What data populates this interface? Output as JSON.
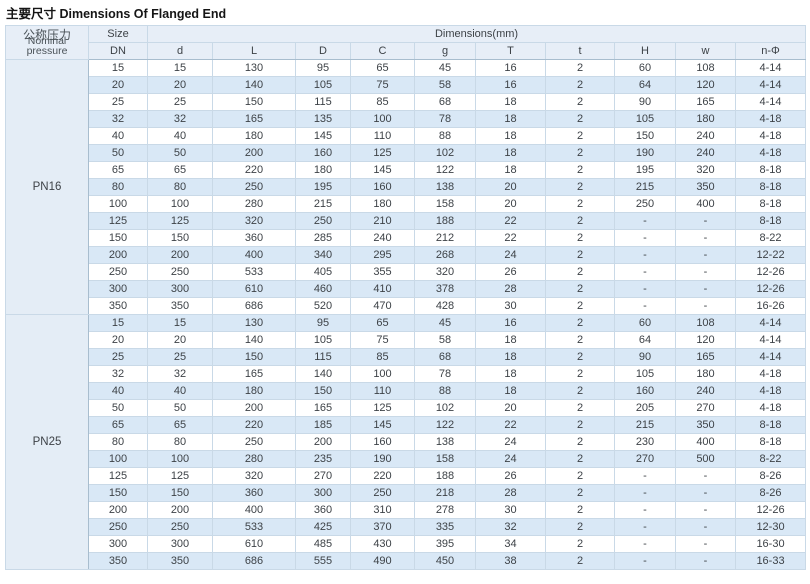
{
  "title": "主要尺寸 Dimensions Of Flanged End",
  "table": {
    "pressure_header": {
      "cn": "公称压力",
      "en_line1": "Nominal",
      "en_line2": "pressure"
    },
    "size_label": "Size",
    "dn_label": "DN",
    "dimensions_label": "Dimensions(mm)",
    "columns": [
      "d",
      "L",
      "D",
      "C",
      "g",
      "T",
      "t",
      "H",
      "w",
      "n-Φ"
    ],
    "sections": [
      {
        "pressure": "PN16",
        "rows": [
          [
            "15",
            "15",
            "130",
            "95",
            "65",
            "45",
            "16",
            "2",
            "60",
            "108",
            "4-14"
          ],
          [
            "20",
            "20",
            "140",
            "105",
            "75",
            "58",
            "16",
            "2",
            "64",
            "120",
            "4-14"
          ],
          [
            "25",
            "25",
            "150",
            "115",
            "85",
            "68",
            "18",
            "2",
            "90",
            "165",
            "4-14"
          ],
          [
            "32",
            "32",
            "165",
            "135",
            "100",
            "78",
            "18",
            "2",
            "105",
            "180",
            "4-18"
          ],
          [
            "40",
            "40",
            "180",
            "145",
            "110",
            "88",
            "18",
            "2",
            "150",
            "240",
            "4-18"
          ],
          [
            "50",
            "50",
            "200",
            "160",
            "125",
            "102",
            "18",
            "2",
            "190",
            "240",
            "4-18"
          ],
          [
            "65",
            "65",
            "220",
            "180",
            "145",
            "122",
            "18",
            "2",
            "195",
            "320",
            "8-18"
          ],
          [
            "80",
            "80",
            "250",
            "195",
            "160",
            "138",
            "20",
            "2",
            "215",
            "350",
            "8-18"
          ],
          [
            "100",
            "100",
            "280",
            "215",
            "180",
            "158",
            "20",
            "2",
            "250",
            "400",
            "8-18"
          ],
          [
            "125",
            "125",
            "320",
            "250",
            "210",
            "188",
            "22",
            "2",
            "-",
            "-",
            "8-18"
          ],
          [
            "150",
            "150",
            "360",
            "285",
            "240",
            "212",
            "22",
            "2",
            "-",
            "-",
            "8-22"
          ],
          [
            "200",
            "200",
            "400",
            "340",
            "295",
            "268",
            "24",
            "2",
            "-",
            "-",
            "12-22"
          ],
          [
            "250",
            "250",
            "533",
            "405",
            "355",
            "320",
            "26",
            "2",
            "-",
            "-",
            "12-26"
          ],
          [
            "300",
            "300",
            "610",
            "460",
            "410",
            "378",
            "28",
            "2",
            "-",
            "-",
            "12-26"
          ],
          [
            "350",
            "350",
            "686",
            "520",
            "470",
            "428",
            "30",
            "2",
            "-",
            "-",
            "16-26"
          ]
        ]
      },
      {
        "pressure": "PN25",
        "rows": [
          [
            "15",
            "15",
            "130",
            "95",
            "65",
            "45",
            "16",
            "2",
            "60",
            "108",
            "4-14"
          ],
          [
            "20",
            "20",
            "140",
            "105",
            "75",
            "58",
            "18",
            "2",
            "64",
            "120",
            "4-14"
          ],
          [
            "25",
            "25",
            "150",
            "115",
            "85",
            "68",
            "18",
            "2",
            "90",
            "165",
            "4-14"
          ],
          [
            "32",
            "32",
            "165",
            "140",
            "100",
            "78",
            "18",
            "2",
            "105",
            "180",
            "4-18"
          ],
          [
            "40",
            "40",
            "180",
            "150",
            "110",
            "88",
            "18",
            "2",
            "160",
            "240",
            "4-18"
          ],
          [
            "50",
            "50",
            "200",
            "165",
            "125",
            "102",
            "20",
            "2",
            "205",
            "270",
            "4-18"
          ],
          [
            "65",
            "65",
            "220",
            "185",
            "145",
            "122",
            "22",
            "2",
            "215",
            "350",
            "8-18"
          ],
          [
            "80",
            "80",
            "250",
            "200",
            "160",
            "138",
            "24",
            "2",
            "230",
            "400",
            "8-18"
          ],
          [
            "100",
            "100",
            "280",
            "235",
            "190",
            "158",
            "24",
            "2",
            "270",
            "500",
            "8-22"
          ],
          [
            "125",
            "125",
            "320",
            "270",
            "220",
            "188",
            "26",
            "2",
            "-",
            "-",
            "8-26"
          ],
          [
            "150",
            "150",
            "360",
            "300",
            "250",
            "218",
            "28",
            "2",
            "-",
            "-",
            "8-26"
          ],
          [
            "200",
            "200",
            "400",
            "360",
            "310",
            "278",
            "30",
            "2",
            "-",
            "-",
            "12-26"
          ],
          [
            "250",
            "250",
            "533",
            "425",
            "370",
            "335",
            "32",
            "2",
            "-",
            "-",
            "12-30"
          ],
          [
            "300",
            "300",
            "610",
            "485",
            "430",
            "395",
            "34",
            "2",
            "-",
            "-",
            "16-30"
          ],
          [
            "350",
            "350",
            "686",
            "555",
            "490",
            "450",
            "38",
            "2",
            "-",
            "-",
            "16-33"
          ]
        ]
      }
    ]
  },
  "colors": {
    "stripe": "#d9e8f6",
    "header_bg": "#e7eef7",
    "label_bg": "#e4edf6",
    "grid_line": "#c9d9e7",
    "outer_border": "#a8bdce",
    "section_border": "#9db4c7",
    "text": "#3d4247"
  }
}
